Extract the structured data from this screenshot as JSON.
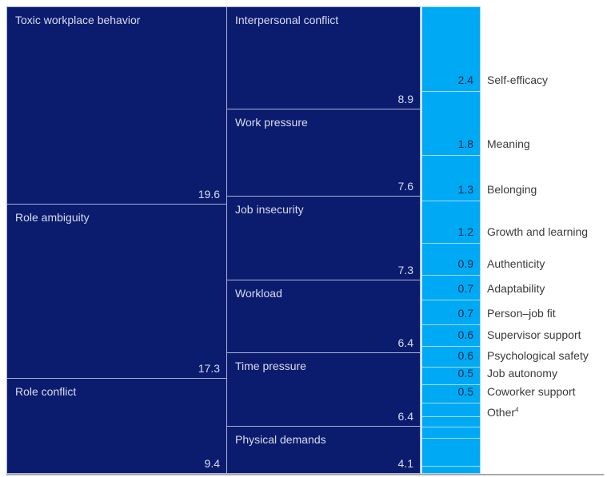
{
  "colors": {
    "dark": "#0b1c6e",
    "light": "#00a9f4"
  },
  "chart_data": {
    "type": "treemap",
    "title": "",
    "groups": [
      {
        "name": "demands-column-1",
        "color": "dark",
        "items": [
          {
            "label": "Toxic workplace behavior",
            "value": 19.6
          },
          {
            "label": "Role ambiguity",
            "value": 17.3
          },
          {
            "label": "Role conflict",
            "value": 9.4
          }
        ]
      },
      {
        "name": "demands-column-2",
        "color": "dark",
        "items": [
          {
            "label": "Interpersonal conflict",
            "value": 8.9
          },
          {
            "label": "Work pressure",
            "value": 7.6
          },
          {
            "label": "Job insecurity",
            "value": 7.3
          },
          {
            "label": "Workload",
            "value": 6.4
          },
          {
            "label": "Time pressure",
            "value": 6.4
          },
          {
            "label": "Physical demands",
            "value": 4.1
          }
        ]
      },
      {
        "name": "resources-column",
        "color": "light",
        "items": [
          {
            "label": "Self-efficacy",
            "value": 2.4
          },
          {
            "label": "Meaning",
            "value": 1.8
          },
          {
            "label": "Belonging",
            "value": 1.3
          },
          {
            "label": "Growth and learning",
            "value": 1.2
          },
          {
            "label": "Authenticity",
            "value": 0.9
          },
          {
            "label": "Adaptability",
            "value": 0.7
          },
          {
            "label": "Person–job fit",
            "value": 0.7
          },
          {
            "label": "Supervisor support",
            "value": 0.6
          },
          {
            "label": "Psychological safety",
            "value": 0.6
          },
          {
            "label": "Job autonomy",
            "value": 0.5
          },
          {
            "label": "Coworker support",
            "value": 0.5
          }
        ],
        "other": {
          "label": "Other",
          "footnote": "4",
          "slices": [
            0.4,
            0.3,
            0.3,
            0.8,
            0.2
          ]
        }
      }
    ]
  }
}
